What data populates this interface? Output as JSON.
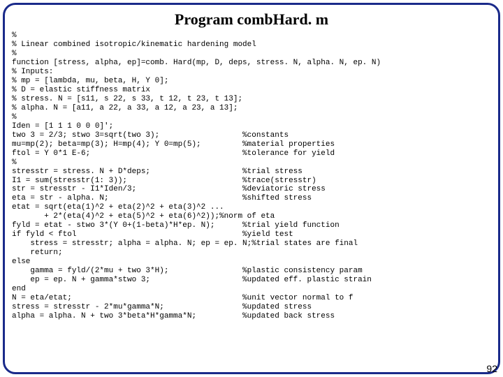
{
  "title": "Program combHard. m",
  "title_fontsize": 22,
  "code_fontsize": 11,
  "border_color": "#1a2a8a",
  "border_radius": 18,
  "page_number": "92",
  "page_number_fontsize": 14,
  "code_lines": [
    {
      "l": "%",
      "c": ""
    },
    {
      "l": "% Linear combined isotropic/kinematic hardening model",
      "c": ""
    },
    {
      "l": "%",
      "c": ""
    },
    {
      "l": "function [stress, alpha, ep]=comb. Hard(mp, D, deps, stress. N, alpha. N, ep. N)",
      "c": ""
    },
    {
      "l": "% Inputs:",
      "c": ""
    },
    {
      "l": "% mp = [lambda, mu, beta, H, Y 0];",
      "c": ""
    },
    {
      "l": "% D = elastic stiffness matrix",
      "c": ""
    },
    {
      "l": "% stress. N = [s11, s 22, s 33, t 12, t 23, t 13];",
      "c": ""
    },
    {
      "l": "% alpha. N = [a11, a 22, a 33, a 12, a 23, a 13];",
      "c": ""
    },
    {
      "l": "%",
      "c": ""
    },
    {
      "l": "Iden = [1 1 1 0 0 0]';",
      "c": ""
    },
    {
      "l": "two 3 = 2/3; stwo 3=sqrt(two 3);",
      "c": "%constants"
    },
    {
      "l": "mu=mp(2); beta=mp(3); H=mp(4); Y 0=mp(5);",
      "c": "%material properties"
    },
    {
      "l": "ftol = Y 0*1 E-6;",
      "c": "%tolerance for yield"
    },
    {
      "l": "%",
      "c": ""
    },
    {
      "l": "stresstr = stress. N + D*deps;",
      "c": "%trial stress"
    },
    {
      "l": "I1 = sum(stresstr(1: 3));",
      "c": "%trace(stresstr)"
    },
    {
      "l": "str = stresstr - I1*Iden/3;",
      "c": "%deviatoric stress"
    },
    {
      "l": "eta = str - alpha. N;",
      "c": "%shifted stress"
    },
    {
      "l": "etat = sqrt(eta(1)^2 + eta(2)^2 + eta(3)^2 ...",
      "c": ""
    },
    {
      "l": "       + 2*(eta(4)^2 + eta(5)^2 + eta(6)^2));%norm of eta",
      "c": ""
    },
    {
      "l": "fyld = etat - stwo 3*(Y 0+(1-beta)*H*ep. N);",
      "c": "%trial yield function"
    },
    {
      "l": "if fyld < ftol",
      "c": "%yield test"
    },
    {
      "l": "    stress = stresstr; alpha = alpha. N; ep = ep. N;%trial states are final",
      "c": ""
    },
    {
      "l": "    return;",
      "c": ""
    },
    {
      "l": "else",
      "c": ""
    },
    {
      "l": "    gamma = fyld/(2*mu + two 3*H);",
      "c": "%plastic consistency param"
    },
    {
      "l": "    ep = ep. N + gamma*stwo 3;",
      "c": "%updated eff. plastic strain"
    },
    {
      "l": "end",
      "c": ""
    },
    {
      "l": "N = eta/etat;",
      "c": "%unit vector normal to f"
    },
    {
      "l": "stress = stresstr - 2*mu*gamma*N;",
      "c": "%updated stress"
    },
    {
      "l": "alpha = alpha. N + two 3*beta*H*gamma*N;",
      "c": "%updated back stress"
    }
  ]
}
